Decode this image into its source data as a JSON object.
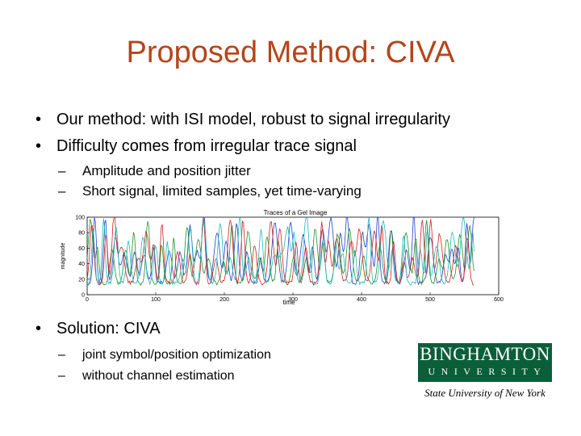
{
  "slide": {
    "title": "Proposed Method: CIVA",
    "bullets": [
      "Our method: with ISI model, robust to signal irregularity",
      "Difficulty comes from irregular trace signal"
    ],
    "sub_bullets": [
      "Amplitude and position jitter",
      "Short signal, limited samples, yet time-varying"
    ],
    "solution": "Solution: CIVA",
    "solution_sub": [
      "joint symbol/position optimization",
      "without channel estimation"
    ],
    "bullet_glyph": "•",
    "dash_glyph": "–"
  },
  "logo": {
    "top": "BINGHAMTON",
    "bottom": "UNIVERSITY",
    "tagline": "State University of New York",
    "color": "#0b5e3a"
  },
  "chart_data": {
    "type": "line",
    "title": "Traces of a Gel Image",
    "xlabel": "time",
    "ylabel": "magnitude",
    "xlim": [
      0,
      600
    ],
    "ylim": [
      0,
      100
    ],
    "xticks": [
      "0",
      "100",
      "200",
      "300",
      "400",
      "500",
      "600"
    ],
    "yticks": [
      "0",
      "20",
      "40",
      "60",
      "80",
      "100"
    ],
    "grid": false,
    "series": [
      {
        "color": "#1f3fd0"
      },
      {
        "color": "#1e8f2a"
      },
      {
        "color": "#d02020"
      },
      {
        "color": "#20b8b8"
      }
    ]
  }
}
